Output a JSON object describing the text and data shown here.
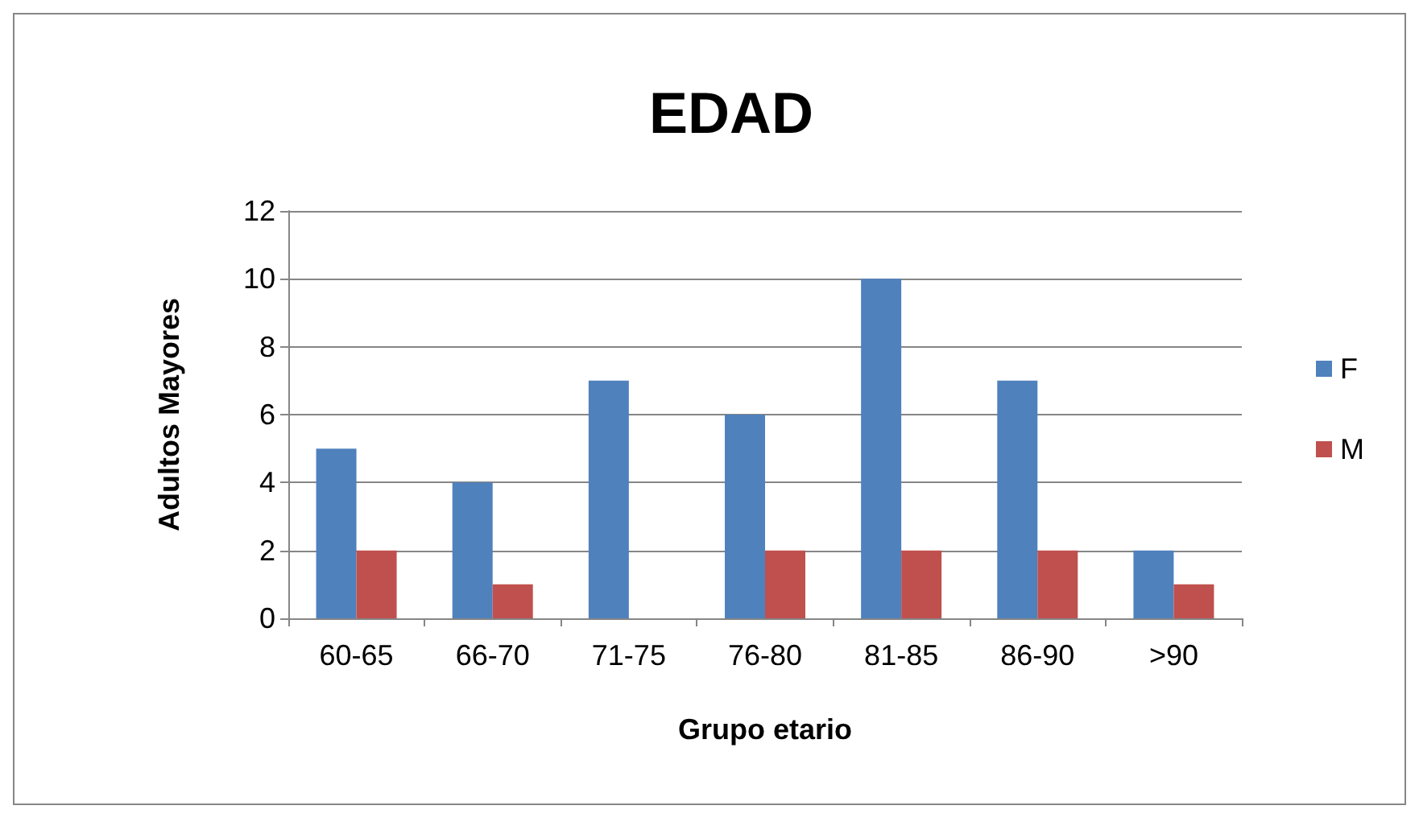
{
  "chart_data": {
    "type": "bar",
    "title": "EDAD",
    "xlabel": "Grupo etario",
    "ylabel": "Adultos Mayores",
    "categories": [
      "60-65",
      "66-70",
      "71-75",
      "76-80",
      "81-85",
      "86-90",
      ">90"
    ],
    "series": [
      {
        "name": "F",
        "color": "#4f81bd",
        "values": [
          5,
          4,
          7,
          6,
          10,
          7,
          2
        ]
      },
      {
        "name": "M",
        "color": "#c0504d",
        "values": [
          2,
          1,
          0,
          2,
          2,
          2,
          1
        ]
      }
    ],
    "ylim": [
      0,
      12
    ],
    "yticks": [
      0,
      2,
      4,
      6,
      8,
      10,
      12
    ],
    "grid": "y",
    "legend": "right"
  }
}
